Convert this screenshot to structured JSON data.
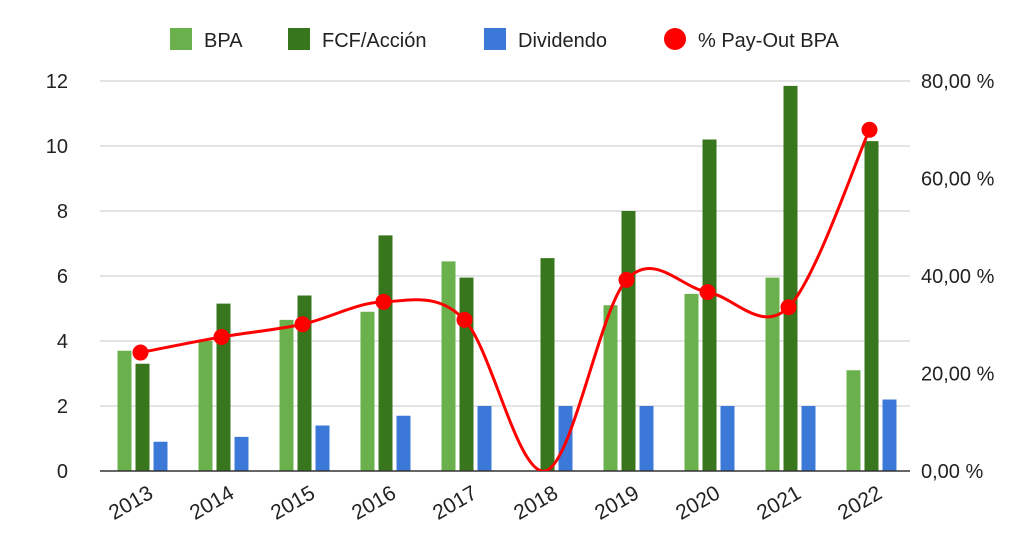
{
  "chart_data": {
    "type": "bar",
    "categories": [
      "2013",
      "2014",
      "2015",
      "2016",
      "2017",
      "2018",
      "2019",
      "2020",
      "2021",
      "2022"
    ],
    "series": [
      {
        "name": "BPA",
        "kind": "bar",
        "axis": "left",
        "color": "#6ab04c",
        "values": [
          3.7,
          4.0,
          4.65,
          4.9,
          6.45,
          null,
          5.1,
          5.45,
          5.95,
          3.1
        ]
      },
      {
        "name": "FCF/Acción",
        "kind": "bar",
        "axis": "left",
        "color": "#38761d",
        "values": [
          3.3,
          5.15,
          5.4,
          7.25,
          5.95,
          6.55,
          8.0,
          10.2,
          11.85,
          10.15
        ]
      },
      {
        "name": "Dividendo",
        "kind": "bar",
        "axis": "left",
        "color": "#3c78d8",
        "values": [
          0.9,
          1.05,
          1.4,
          1.7,
          2.0,
          2.0,
          2.0,
          2.0,
          2.0,
          2.2
        ]
      },
      {
        "name": "% Pay-Out BPA",
        "kind": "line",
        "axis": "right",
        "color": "#ff0000",
        "values": [
          24.3,
          27.5,
          30.1,
          34.7,
          31.0,
          0,
          39.2,
          36.7,
          33.6,
          70.0
        ]
      }
    ],
    "left_axis": {
      "ylim": [
        0,
        12
      ],
      "ticks": [
        "0",
        "2",
        "4",
        "6",
        "8",
        "10",
        "12"
      ]
    },
    "right_axis": {
      "ylim": [
        0,
        80
      ],
      "ticks": [
        "0,00 %",
        "20,00 %",
        "40,00 %",
        "60,00 %",
        "80,00 %"
      ]
    },
    "legend": {
      "position": "top",
      "items": [
        "BPA",
        "FCF/Acción",
        "Dividendo",
        "% Pay-Out BPA"
      ]
    },
    "grid": true,
    "smooth_line": true
  }
}
